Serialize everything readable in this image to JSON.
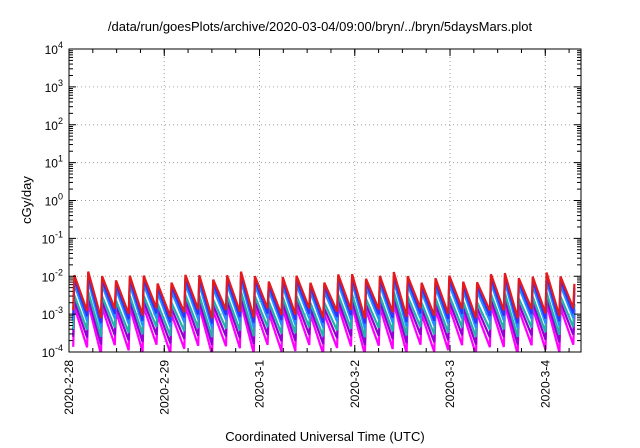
{
  "chart_data": {
    "type": "line",
    "title": "/data/run/goesPlots/archive/2020-03-04/09:00/bryn/../bryn/5daysMars.plot",
    "xlabel": "Coordinated Universal Time (UTC)",
    "ylabel": "cGy/day",
    "scale": {
      "x": "time",
      "y": "log10"
    },
    "grid": true,
    "xlim": [
      "2020-02-28 00:00",
      "2020-03-04 09:00"
    ],
    "ylim": [
      0.0001,
      10000
    ],
    "x_tick_labels": [
      "2020-2-28",
      "2020-2-29",
      "2020-3-1",
      "2020-3-2",
      "2020-3-3",
      "2020-3-4"
    ],
    "y_ticks": [
      {
        "base": "10",
        "exp": "-4"
      },
      {
        "base": "10",
        "exp": "-3"
      },
      {
        "base": "10",
        "exp": "-2"
      },
      {
        "base": "10",
        "exp": "-1"
      },
      {
        "base": "10",
        "exp": "0"
      },
      {
        "base": "10",
        "exp": "1"
      },
      {
        "base": "10",
        "exp": "2"
      },
      {
        "base": "10",
        "exp": "3"
      },
      {
        "base": "10",
        "exp": "4"
      }
    ],
    "cycle_hours": 3.5,
    "series": [
      {
        "color": "#e41a1c",
        "peak": 0.0095,
        "trough": 0.0011
      },
      {
        "color": "#3333ff",
        "peak": 0.0075,
        "trough": 0.0008
      },
      {
        "color": "#1e90ff",
        "peak": 0.0055,
        "trough": 0.0006
      },
      {
        "color": "#20b2aa",
        "peak": 0.0028,
        "trough": 0.00035
      },
      {
        "color": "#9400d3",
        "peak": 0.002,
        "trough": 0.00022
      },
      {
        "color": "#ff00ff",
        "peak": 0.0014,
        "trough": 0.00012
      }
    ]
  }
}
